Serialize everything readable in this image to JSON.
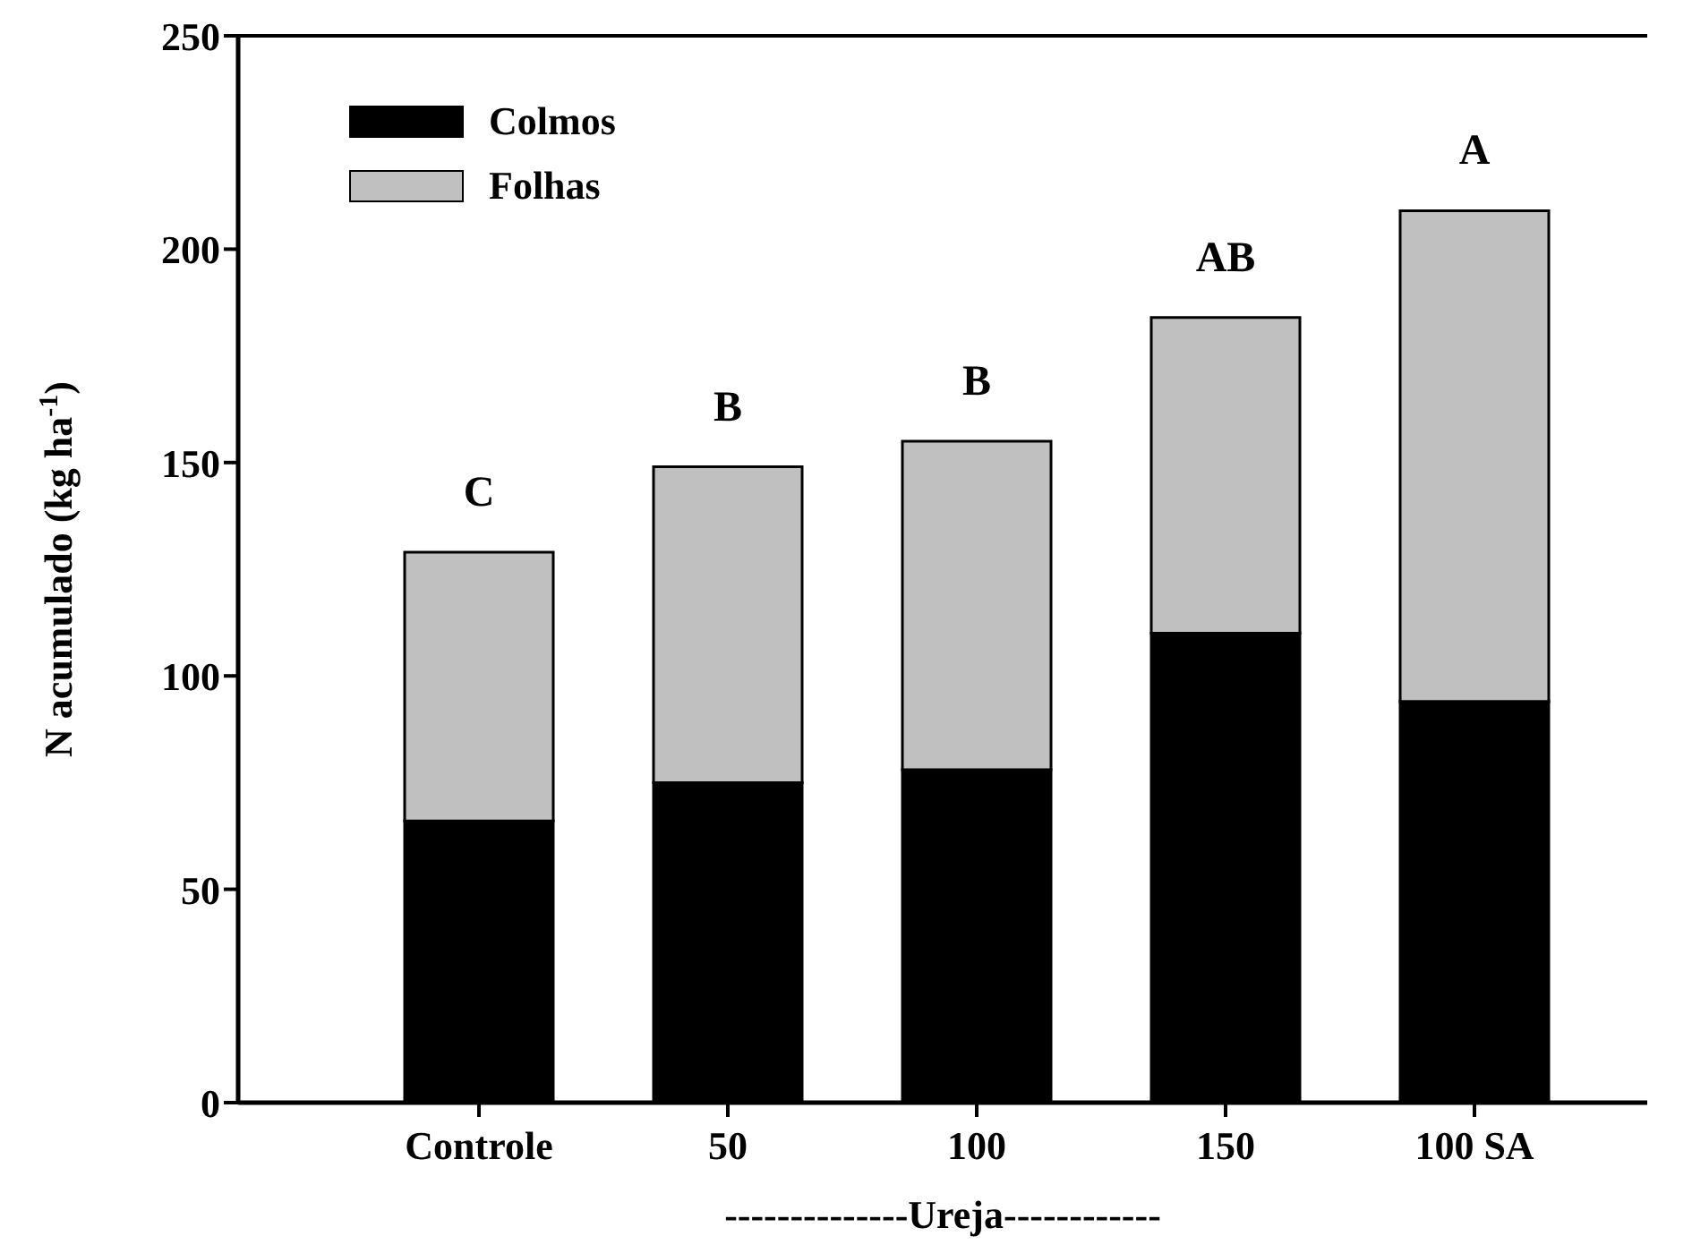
{
  "chart_data": {
    "type": "bar",
    "stacked": true,
    "xlabel": "--------------Ureja------------",
    "ylabel": "N  acumulado (kg ha$^{-1}$)",
    "categories": [
      "Controle",
      "50",
      "100",
      "150",
      "100 SA"
    ],
    "series": [
      {
        "name": "Colmos",
        "color": "#000000",
        "values": [
          66,
          75,
          78,
          110,
          94
        ]
      },
      {
        "name": "Folhas",
        "color": "#c0c0c0",
        "values": [
          63,
          74,
          77,
          74,
          115
        ]
      }
    ],
    "ylim": [
      0,
      250
    ],
    "yticks": [
      0,
      50,
      100,
      150,
      200,
      250
    ],
    "legend": "top left",
    "annotations": [
      {
        "text": "C",
        "x": "Controle",
        "y": 129
      },
      {
        "text": "B",
        "x": "50",
        "y": 149
      },
      {
        "text": "B",
        "x": "100",
        "y": 155
      },
      {
        "text": "AB",
        "x": "150",
        "y": 184
      },
      {
        "text": "A",
        "x": "100 SA",
        "y": 209
      }
    ]
  }
}
